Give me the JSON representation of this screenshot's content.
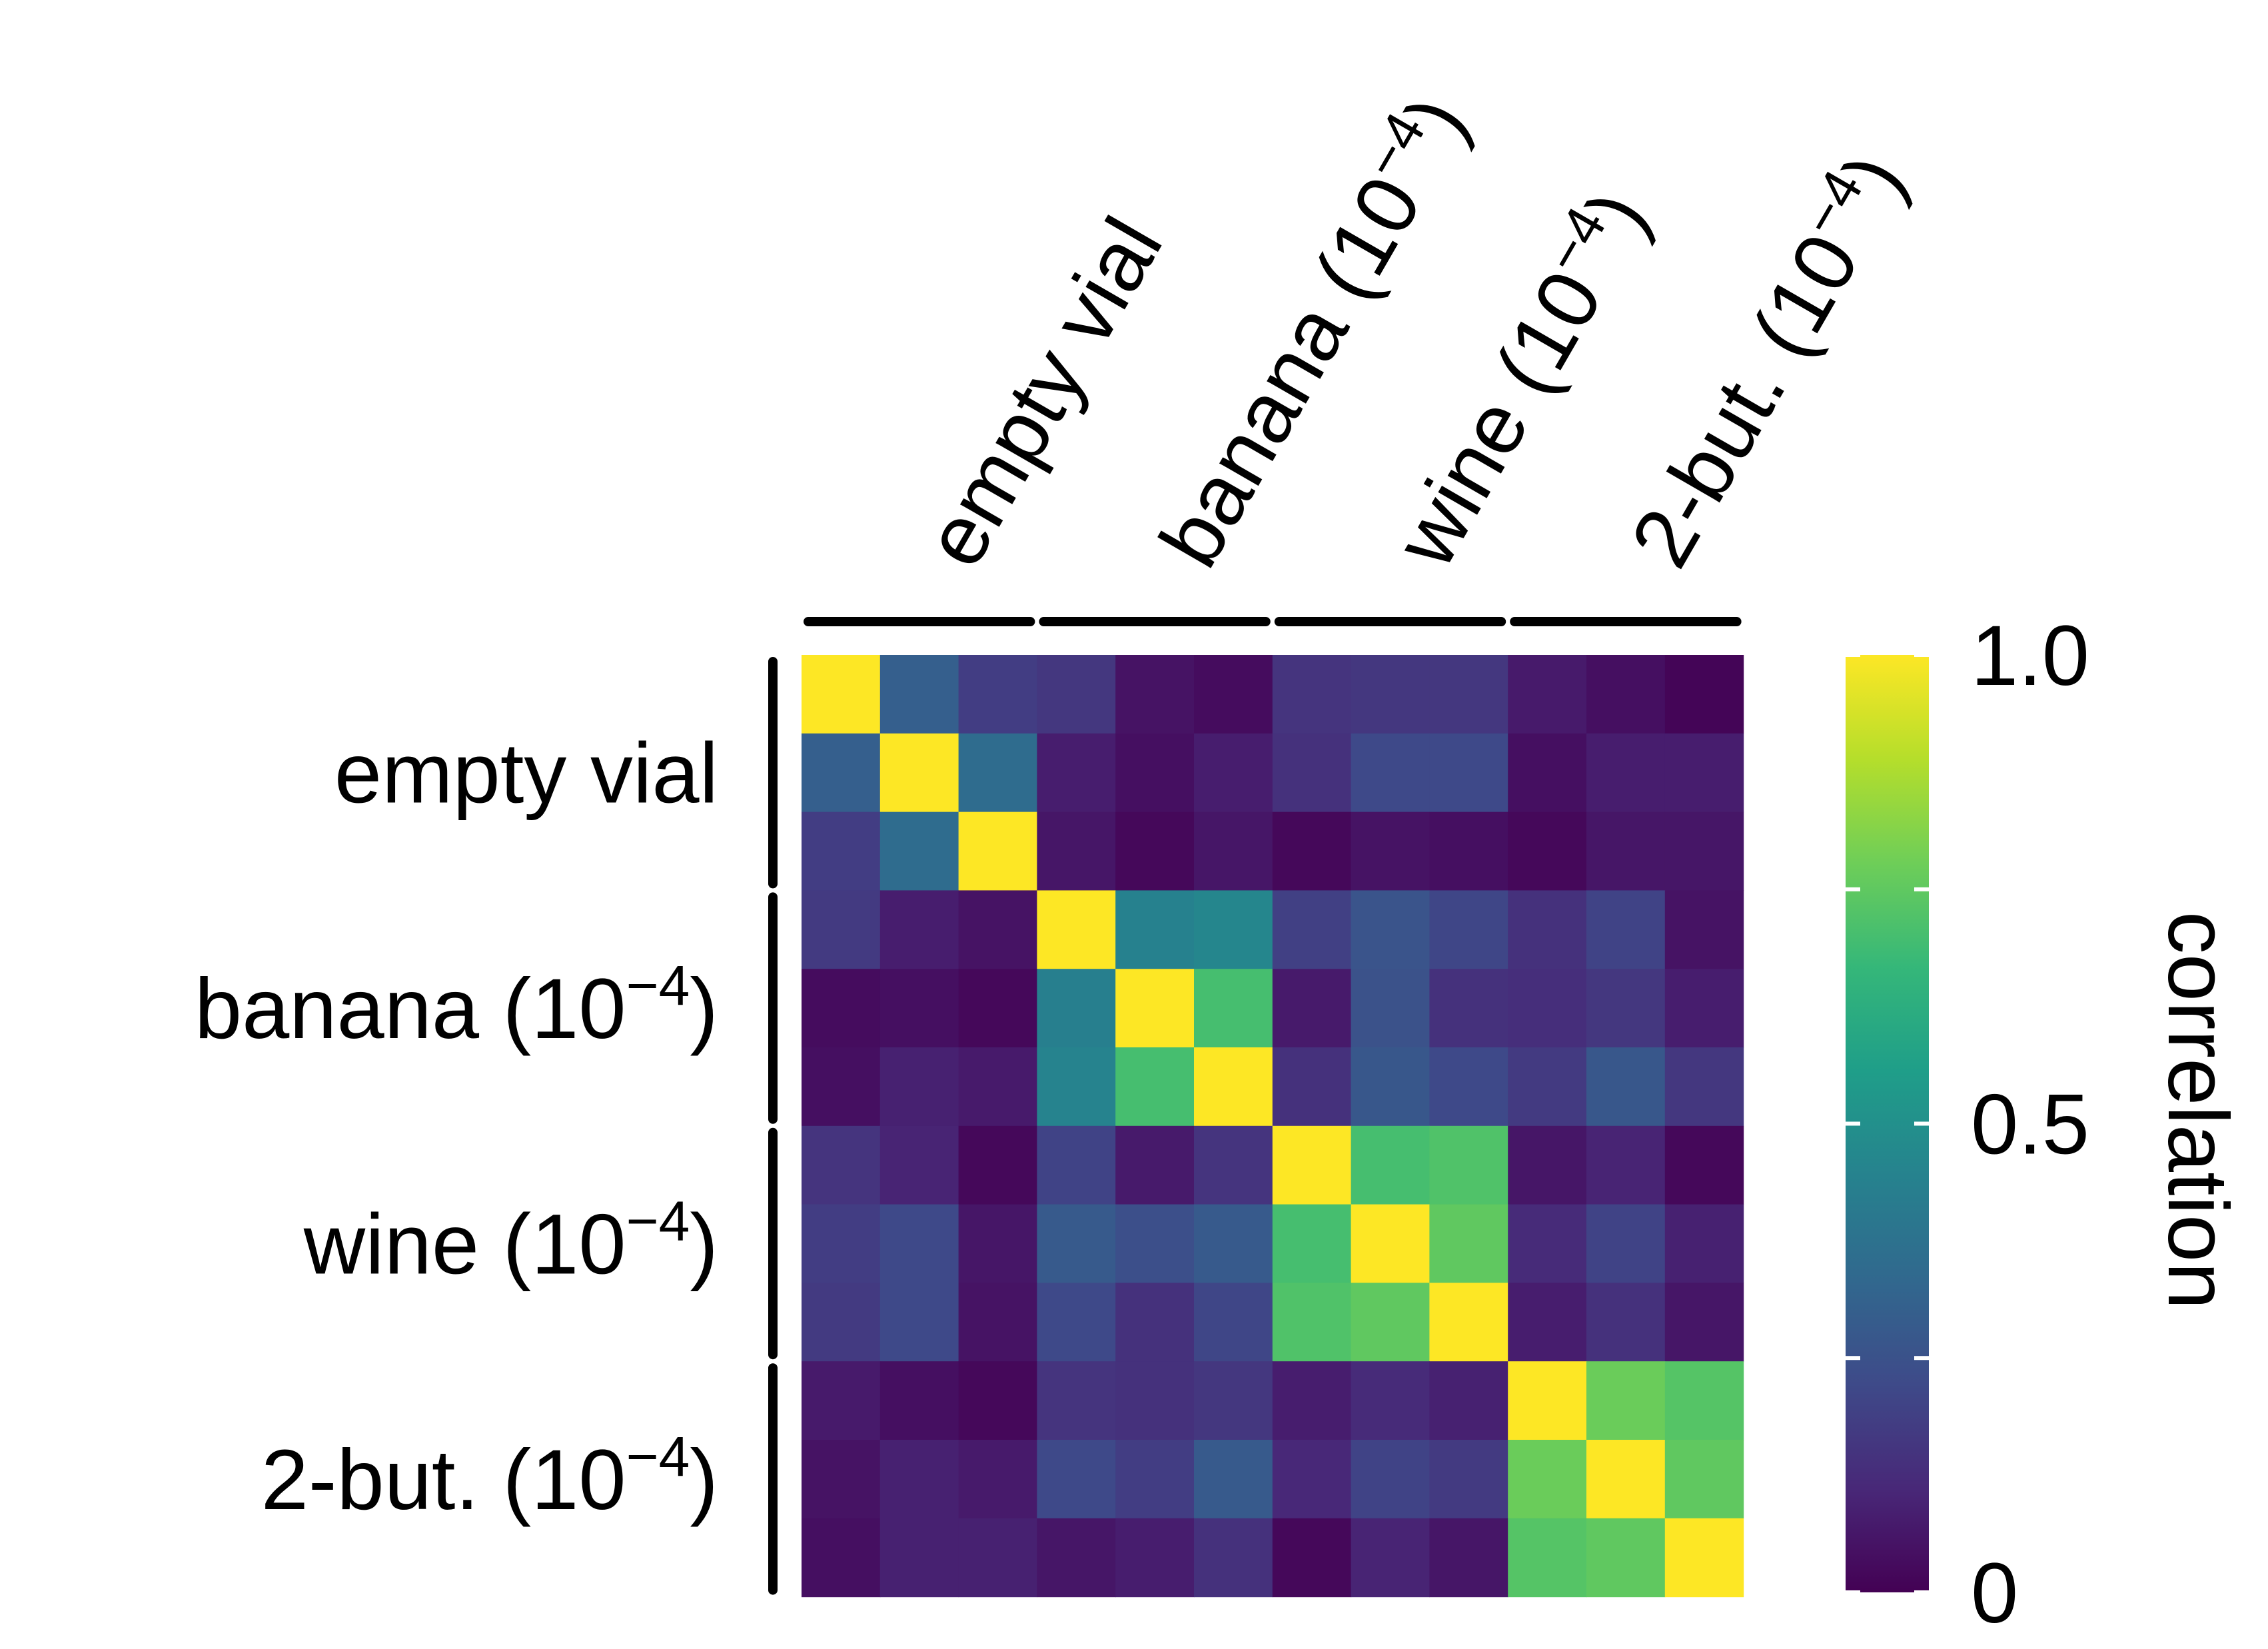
{
  "chart_data": {
    "type": "heatmap",
    "title": "",
    "xlabel": "",
    "ylabel": "",
    "groups": [
      {
        "name": "empty vial",
        "base": "empty vial",
        "superscript": ""
      },
      {
        "name": "banana (10−4)",
        "base": "banana (10",
        "superscript": "−4",
        "close": ")"
      },
      {
        "name": "wine (10−4)",
        "base": "wine (10",
        "superscript": "−4",
        "close": ")"
      },
      {
        "name": "2-but. (10−4)",
        "base": "2-but. (10",
        "superscript": "−4",
        "close": ")"
      }
    ],
    "replicates_per_group": 3,
    "matrix": [
      [
        1.0,
        0.3,
        0.18,
        0.16,
        0.05,
        0.03,
        0.15,
        0.16,
        0.16,
        0.07,
        0.04,
        0.01
      ],
      [
        0.3,
        1.0,
        0.35,
        0.08,
        0.04,
        0.08,
        0.14,
        0.22,
        0.22,
        0.04,
        0.08,
        0.08
      ],
      [
        0.18,
        0.35,
        1.0,
        0.06,
        0.02,
        0.06,
        0.02,
        0.05,
        0.04,
        0.02,
        0.06,
        0.06
      ],
      [
        0.17,
        0.08,
        0.05,
        1.0,
        0.44,
        0.46,
        0.19,
        0.26,
        0.21,
        0.14,
        0.2,
        0.05
      ],
      [
        0.03,
        0.04,
        0.02,
        0.43,
        1.0,
        0.7,
        0.07,
        0.25,
        0.14,
        0.13,
        0.16,
        0.08
      ],
      [
        0.04,
        0.09,
        0.07,
        0.45,
        0.7,
        1.0,
        0.14,
        0.27,
        0.22,
        0.17,
        0.27,
        0.16
      ],
      [
        0.15,
        0.1,
        0.02,
        0.2,
        0.07,
        0.15,
        1.0,
        0.7,
        0.72,
        0.06,
        0.1,
        0.02
      ],
      [
        0.18,
        0.22,
        0.06,
        0.28,
        0.24,
        0.28,
        0.7,
        1.0,
        0.75,
        0.12,
        0.2,
        0.09
      ],
      [
        0.17,
        0.22,
        0.05,
        0.22,
        0.14,
        0.21,
        0.72,
        0.75,
        1.0,
        0.08,
        0.14,
        0.06
      ],
      [
        0.07,
        0.04,
        0.02,
        0.15,
        0.14,
        0.16,
        0.08,
        0.12,
        0.09,
        1.0,
        0.77,
        0.73
      ],
      [
        0.05,
        0.09,
        0.07,
        0.22,
        0.18,
        0.28,
        0.11,
        0.2,
        0.17,
        0.77,
        1.0,
        0.75
      ],
      [
        0.04,
        0.09,
        0.09,
        0.06,
        0.08,
        0.14,
        0.02,
        0.1,
        0.06,
        0.73,
        0.75,
        1.0
      ]
    ],
    "color_scale": {
      "name": "viridis",
      "min": 0,
      "max": 1,
      "stops": [
        "#440154",
        "#482878",
        "#3e4a89",
        "#31688e",
        "#26828e",
        "#1f9e89",
        "#35b779",
        "#6ece58",
        "#b5de2b",
        "#fde725"
      ]
    },
    "colorbar": {
      "title": "correlation",
      "ticks": [
        0,
        0.25,
        0.5,
        0.75,
        1.0
      ],
      "tick_labels": [
        {
          "value": 0,
          "text": "0"
        },
        {
          "value": 0.5,
          "text": "0.5"
        },
        {
          "value": 1.0,
          "text": "1.0"
        }
      ],
      "placement": "right"
    }
  }
}
